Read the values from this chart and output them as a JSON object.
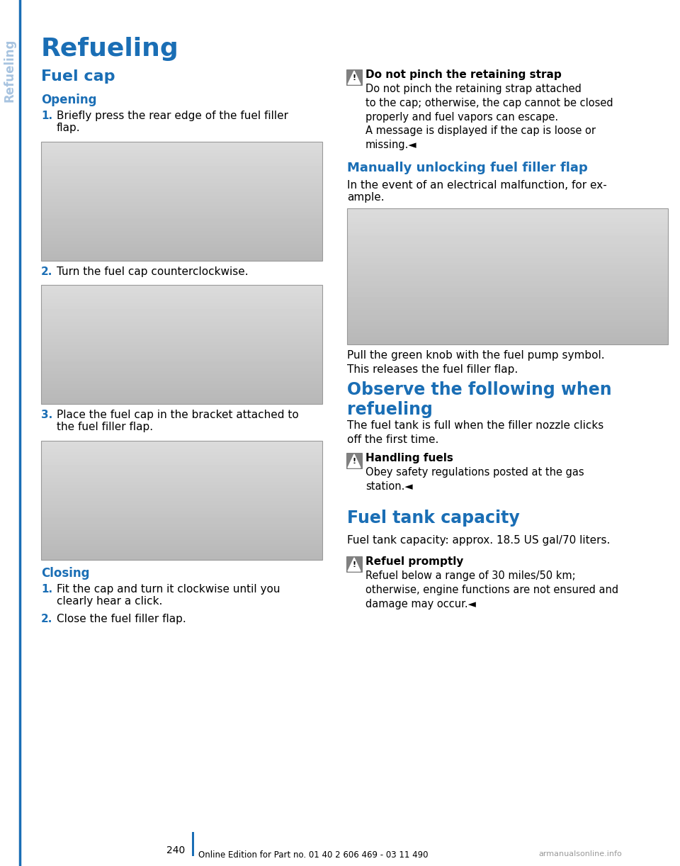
{
  "page_bg": "#ffffff",
  "blue": "#1a6eb5",
  "sidebar_text_color": "#a8c4e0",
  "sidebar_text": "Refueling",
  "main_title": "Refueling",
  "section1_title": "Fuel cap",
  "subsection_opening": "Opening",
  "opening_steps": [
    "Briefly press the rear edge of the fuel filler\nflap.",
    "Turn the fuel cap counterclockwise.",
    "Place the fuel cap in the bracket attached to\nthe fuel filler flap."
  ],
  "closing_title": "Closing",
  "closing_steps": [
    "Fit the cap and turn it clockwise until you\nclearly hear a click.",
    "Close the fuel filler flap."
  ],
  "warn1_title": "Do not pinch the retaining strap",
  "warn1_body": "Do not pinch the retaining strap attached\nto the cap; otherwise, the cap cannot be closed\nproperly and fuel vapors can escape.\nA message is displayed if the cap is loose or\nmissing.◄",
  "sec2_title": "Manually unlocking fuel filler flap",
  "sec2_body": "In the event of an electrical malfunction, for ex-\nample.",
  "sec2_caption": "Pull the green knob with the fuel pump symbol.\nThis releases the fuel filler flap.",
  "sec3_title": "Observe the following when\nrefueling",
  "sec3_body": "The fuel tank is full when the filler nozzle clicks\noff the first time.",
  "warn2_title": "Handling fuels",
  "warn2_body": "Obey safety regulations posted at the gas\nstation.◄",
  "sec4_title": "Fuel tank capacity",
  "sec4_body": "Fuel tank capacity: approx. 18.5 US gal/70 liters.",
  "warn3_title": "Refuel promptly",
  "warn3_body": "Refuel below a range of 30 miles/50 km;\notherwise, engine functions are not ensured and\ndamage may occur.◄",
  "page_number": "240",
  "footer": "Online Edition for Part no. 01 40 2 606 469 - 03 11 490",
  "watermark": "armanualsonline.info",
  "img_color": "#c0c0c0",
  "img_border": "#999999",
  "img_gradient_top": "#d8d8d8",
  "img_gradient_bot": "#b0b0b0"
}
